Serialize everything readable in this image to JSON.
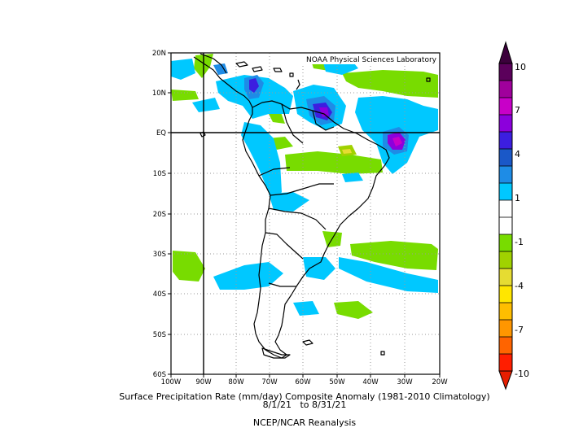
{
  "map": {
    "credit": "NOAA Physical Sciences Laboratory",
    "lat_labels": [
      "20N",
      "10N",
      "EQ",
      "10S",
      "20S",
      "30S",
      "40S",
      "50S",
      "60S"
    ],
    "lon_labels": [
      "100W",
      "90W",
      "80W",
      "70W",
      "60W",
      "50W",
      "40W",
      "30W",
      "20W"
    ],
    "extent": {
      "lon": [
        -100,
        -20
      ],
      "lat": [
        -60,
        20
      ]
    },
    "reference_lines": [
      "EQ",
      "90W"
    ]
  },
  "caption": {
    "line1": "Surface Precipitation Rate (mm/day) Composite Anomaly (1981-2010 Climatology)",
    "line2": "8/1/21   to 8/31/21",
    "line3": "NCEP/NCAR Reanalysis"
  },
  "colorbar": {
    "labels": [
      "10",
      "7",
      "4",
      "1",
      "-1",
      "-4",
      "-7",
      "-10"
    ],
    "colors_top_to_bottom": [
      "#5b005b",
      "#a0009c",
      "#c800c8",
      "#8c00dc",
      "#3c1ee0",
      "#1a58c8",
      "#1e8ce6",
      "#00c8ff",
      "#ffffff",
      "#ffffff",
      "#78dc00",
      "#a0d200",
      "#e6dc32",
      "#ffe600",
      "#ffbe00",
      "#ff9600",
      "#ff6400",
      "#ff1e00"
    ],
    "arrow_top_color": "#3c003c",
    "arrow_bottom_color": "#e61e00"
  }
}
